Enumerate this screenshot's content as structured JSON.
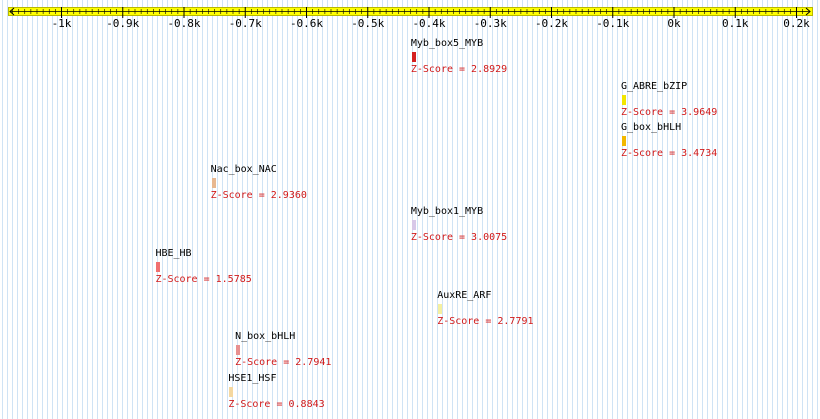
{
  "ruler": {
    "ticks": [
      {
        "label": "-1k",
        "value": -1000
      },
      {
        "label": "-0.9k",
        "value": -900
      },
      {
        "label": "-0.8k",
        "value": -800
      },
      {
        "label": "-0.7k",
        "value": -700
      },
      {
        "label": "-0.6k",
        "value": -600
      },
      {
        "label": "-0.5k",
        "value": -500
      },
      {
        "label": "-0.4k",
        "value": -400
      },
      {
        "label": "-0.3k",
        "value": -300
      },
      {
        "label": "-0.2k",
        "value": -200
      },
      {
        "label": "-0.1k",
        "value": -100
      },
      {
        "label": "0k",
        "value": 0
      },
      {
        "label": "0.1k",
        "value": 100
      },
      {
        "label": "0.2k",
        "value": 200
      }
    ],
    "range": [
      -1100,
      210
    ],
    "color": "#ffff00"
  },
  "motifs": [
    {
      "name": "Myb_box5_MYB",
      "score": "Z-Score = 2.8929",
      "position": -428,
      "color": "#d42020"
    },
    {
      "name": "G_ABRE_bZIP",
      "score": "Z-Score = 3.9649",
      "position": -85,
      "color": "#f2e600"
    },
    {
      "name": "G_box_bHLH",
      "score": "Z-Score = 3.4734",
      "position": -85,
      "color": "#f2b800"
    },
    {
      "name": "Nac_box_NAC",
      "score": "Z-Score = 2.9360",
      "position": -755,
      "color": "#e8b890"
    },
    {
      "name": "Myb_box1_MYB",
      "score": "Z-Score = 3.0075",
      "position": -428,
      "color": "#d8c8e8"
    },
    {
      "name": "HBE_HB",
      "score": "Z-Score = 1.5785",
      "position": -845,
      "color": "#f07070"
    },
    {
      "name": "AuxRE_ARF",
      "score": "Z-Score = 2.7791",
      "position": -385,
      "color": "#f5f0a0"
    },
    {
      "name": "N_box_bHLH",
      "score": "Z-Score = 2.7941",
      "position": -715,
      "color": "#e89090"
    },
    {
      "name": "HSE1_HSF",
      "score": "Z-Score = 0.8843",
      "position": -726,
      "color": "#f5d8a0"
    }
  ]
}
